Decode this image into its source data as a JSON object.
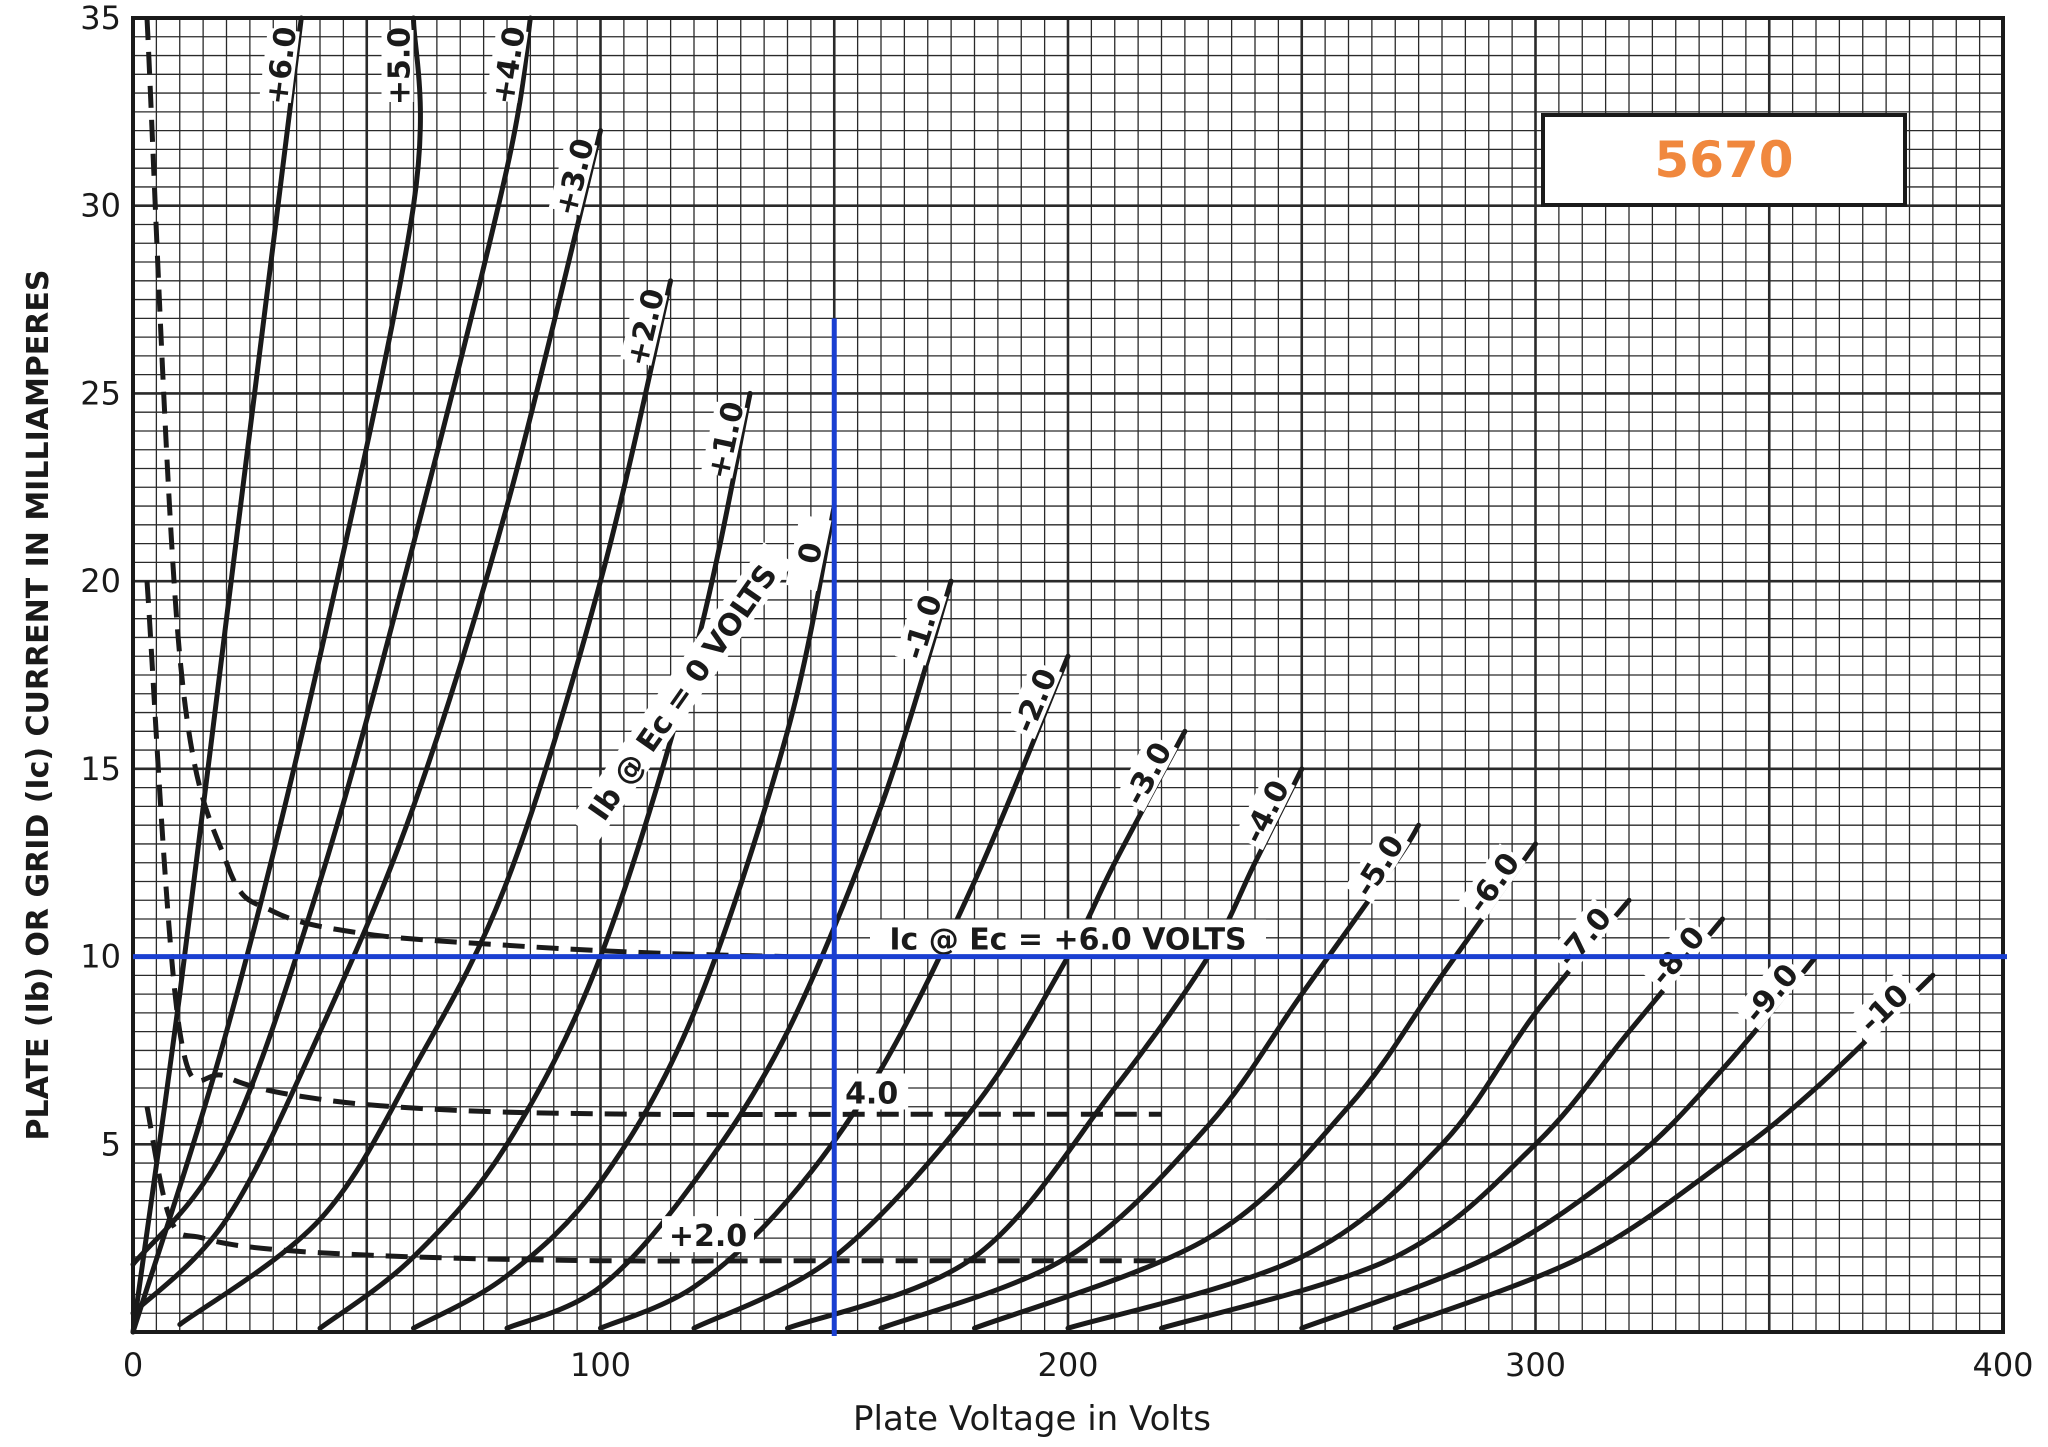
{
  "chart_data": {
    "type": "line",
    "title": "5670",
    "xlabel": "Plate Voltage in Volts",
    "ylabel": "PLATE (Ib) OR GRID (Ic) CURRENT IN MILLIAMPERES",
    "xlim": [
      0,
      400
    ],
    "ylim": [
      0,
      35
    ],
    "grid": true,
    "x_ticks": [
      "0",
      "100",
      "200",
      "300",
      "400"
    ],
    "y_ticks": [
      "5",
      "10",
      "15",
      "20",
      "25",
      "30",
      "35"
    ],
    "series": [
      {
        "name": "+6.0",
        "x": [
          0,
          10,
          20,
          30,
          36
        ],
        "y": [
          0,
          9,
          19,
          29,
          35
        ]
      },
      {
        "name": "+5.0",
        "x": [
          0,
          20,
          40,
          60,
          60
        ],
        "y": [
          0,
          8,
          18,
          30,
          35
        ]
      },
      {
        "name": "+4.0",
        "x": [
          0,
          20,
          40,
          60,
          80,
          85
        ],
        "y": [
          1.8,
          5,
          12,
          21,
          31,
          35
        ]
      },
      {
        "name": "+3.0",
        "x": [
          0,
          20,
          40,
          60,
          80,
          100
        ],
        "y": [
          0.5,
          3,
          8,
          14,
          22,
          32
        ]
      },
      {
        "name": "+2.0",
        "x": [
          10,
          40,
          60,
          80,
          100,
          115
        ],
        "y": [
          0.2,
          3,
          7,
          12,
          20,
          28
        ]
      },
      {
        "name": "+1.0",
        "x": [
          40,
          60,
          80,
          100,
          120,
          132
        ],
        "y": [
          0.1,
          2,
          5,
          10,
          18,
          25
        ]
      },
      {
        "name": "0",
        "x": [
          60,
          80,
          100,
          120,
          140,
          150
        ],
        "y": [
          0.1,
          1.5,
          4,
          8.5,
          16,
          22
        ]
      },
      {
        "name": "-1.0",
        "x": [
          80,
          100,
          120,
          140,
          160,
          175
        ],
        "y": [
          0.1,
          1.2,
          4,
          8,
          14,
          20
        ]
      },
      {
        "name": "-2.0",
        "x": [
          100,
          120,
          140,
          160,
          180,
          200
        ],
        "y": [
          0.1,
          1.2,
          3.5,
          7,
          12,
          18
        ]
      },
      {
        "name": "-3.0",
        "x": [
          120,
          150,
          180,
          200,
          210,
          225
        ],
        "y": [
          0.1,
          2,
          6,
          10,
          12.5,
          16
        ]
      },
      {
        "name": "-4.0",
        "x": [
          140,
          180,
          210,
          230,
          240,
          250
        ],
        "y": [
          0.1,
          2,
          6.5,
          10,
          12.5,
          15
        ]
      },
      {
        "name": "-5.0",
        "x": [
          160,
          200,
          230,
          250,
          270,
          275
        ],
        "y": [
          0.1,
          2,
          5.5,
          9,
          12.5,
          13.5
        ]
      },
      {
        "name": "-6.0",
        "x": [
          180,
          230,
          260,
          280,
          300
        ],
        "y": [
          0.1,
          2.5,
          6,
          9.5,
          13
        ]
      },
      {
        "name": "-7.0",
        "x": [
          200,
          250,
          280,
          300,
          320
        ],
        "y": [
          0.1,
          2,
          5,
          8.5,
          11.5
        ]
      },
      {
        "name": "-8.0",
        "x": [
          220,
          270,
          300,
          320,
          340
        ],
        "y": [
          0.1,
          2,
          5,
          8,
          11
        ]
      },
      {
        "name": "-9.0",
        "x": [
          250,
          290,
          320,
          340,
          360
        ],
        "y": [
          0.1,
          2,
          4.5,
          7,
          10
        ]
      },
      {
        "name": "-10",
        "x": [
          270,
          310,
          340,
          360,
          385
        ],
        "y": [
          0.1,
          2,
          4.5,
          6.5,
          9.5
        ]
      }
    ],
    "grid_current_series": [
      {
        "name": "+6.0 VOLTS",
        "x": [
          3,
          10,
          20,
          30,
          50,
          80,
          110,
          140
        ],
        "y": [
          35,
          18,
          12.5,
          11.2,
          10.6,
          10.3,
          10.1,
          10.0
        ]
      },
      {
        "name": "4.0",
        "x": [
          3,
          10,
          20,
          40,
          70,
          110,
          160,
          220
        ],
        "y": [
          20,
          8,
          6.8,
          6.2,
          5.9,
          5.8,
          5.8,
          5.8
        ]
      },
      {
        "name": "+2.0",
        "x": [
          3,
          8,
          15,
          30,
          60,
          100,
          150,
          220
        ],
        "y": [
          6,
          3,
          2.5,
          2.2,
          2.0,
          1.9,
          1.9,
          1.9
        ]
      }
    ],
    "annotations": [
      {
        "text": "Ib @ Ec = 0 VOLTS"
      },
      {
        "text": "Ic @ Ec = +6.0 VOLTS"
      },
      {
        "text": "4.0"
      },
      {
        "text": "+2.0"
      }
    ],
    "reference_lines": {
      "x": 150,
      "y": 10,
      "color": "#1a3fd1"
    },
    "colors": {
      "curves": "#1a1a1a",
      "grid": "#2a2a2a",
      "reference": "#1a3fd1",
      "title": "#f0883e"
    }
  }
}
